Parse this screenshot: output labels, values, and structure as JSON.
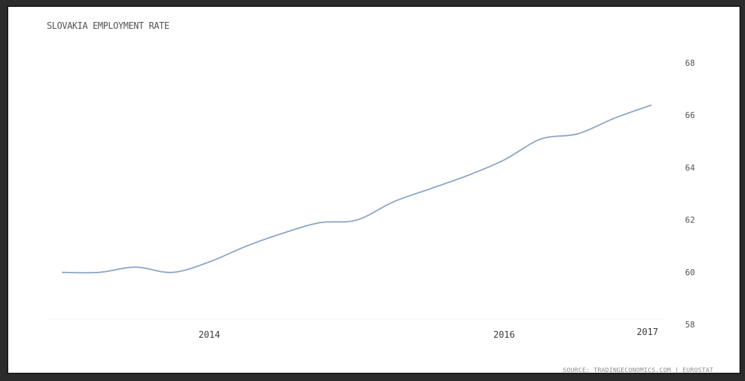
{
  "chart_data": {
    "type": "line",
    "title": "SLOVAKIA EMPLOYMENT RATE",
    "source": "SOURCE: TRADINGECONOMICS.COM | EUROSTAT",
    "xlabel": "",
    "ylabel": "",
    "ylim": [
      58,
      68
    ],
    "x_ticks": [
      2014,
      2016,
      2017
    ],
    "x_tick_labels": [
      "2014",
      "2016",
      "2017"
    ],
    "y_ticks": [
      58,
      60,
      62,
      64,
      66,
      68
    ],
    "y_tick_labels": [
      "58",
      "60",
      "62",
      "64",
      "66",
      "68"
    ],
    "grid": false,
    "legend": "none",
    "line_color": "#8fa8c8",
    "series": [
      {
        "x": [
          "2013 Q1",
          "2013 Q2",
          "2013 Q3",
          "2013 Q4",
          "2014 Q1",
          "2014 Q2",
          "2014 Q3",
          "2014 Q4",
          "2015 Q1",
          "2015 Q2",
          "2015 Q3",
          "2015 Q4",
          "2016 Q1",
          "2016 Q2",
          "2016 Q3",
          "2016 Q4",
          "2017 Q1"
        ],
        "values": [
          60.0,
          60.0,
          60.2,
          60.0,
          60.4,
          61.0,
          61.5,
          61.9,
          62.0,
          62.7,
          63.2,
          63.7,
          64.3,
          65.1,
          65.3,
          65.9,
          66.4
        ]
      }
    ]
  }
}
